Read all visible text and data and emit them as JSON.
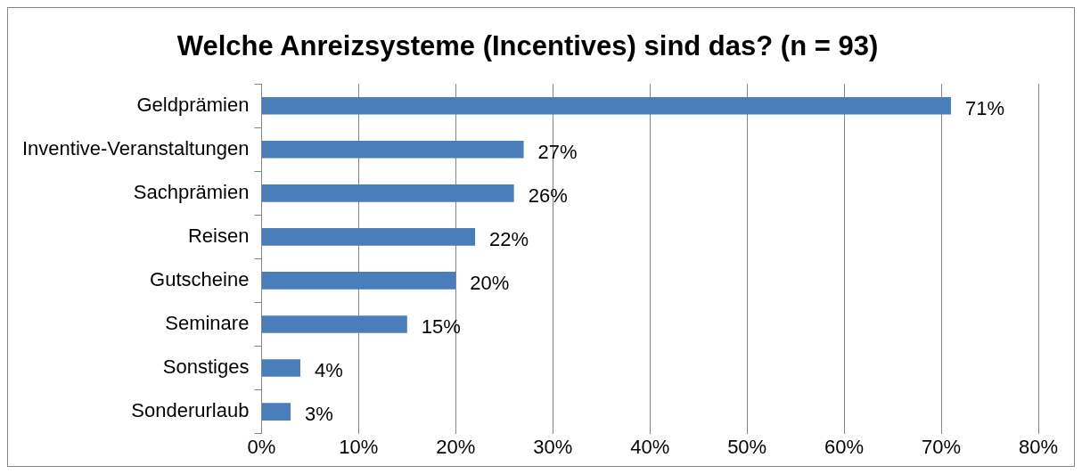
{
  "chart_data": {
    "type": "bar",
    "orientation": "horizontal",
    "title": "Welche Anreizsysteme (Incentives) sind das? (n = 93)",
    "categories": [
      "Geldprämien",
      "Inventive-Veranstaltungen",
      "Sachprämien",
      "Reisen",
      "Gutscheine",
      "Seminare",
      "Sonstiges",
      "Sonderurlaub"
    ],
    "values": [
      71,
      27,
      26,
      22,
      20,
      15,
      4,
      3
    ],
    "value_labels": [
      "71%",
      "27%",
      "26%",
      "22%",
      "20%",
      "15%",
      "4%",
      "3%"
    ],
    "color": "#4a7ebb",
    "xlim": [
      0,
      80
    ],
    "xticks": [
      {
        "value": 0,
        "label": "0%"
      },
      {
        "value": 10,
        "label": "10%"
      },
      {
        "value": 20,
        "label": "20%"
      },
      {
        "value": 30,
        "label": "30%"
      },
      {
        "value": 40,
        "label": "40%"
      },
      {
        "value": 50,
        "label": "50%"
      },
      {
        "value": 60,
        "label": "60%"
      },
      {
        "value": 70,
        "label": "70%"
      },
      {
        "value": 80,
        "label": "80%"
      }
    ],
    "grid": "x"
  }
}
